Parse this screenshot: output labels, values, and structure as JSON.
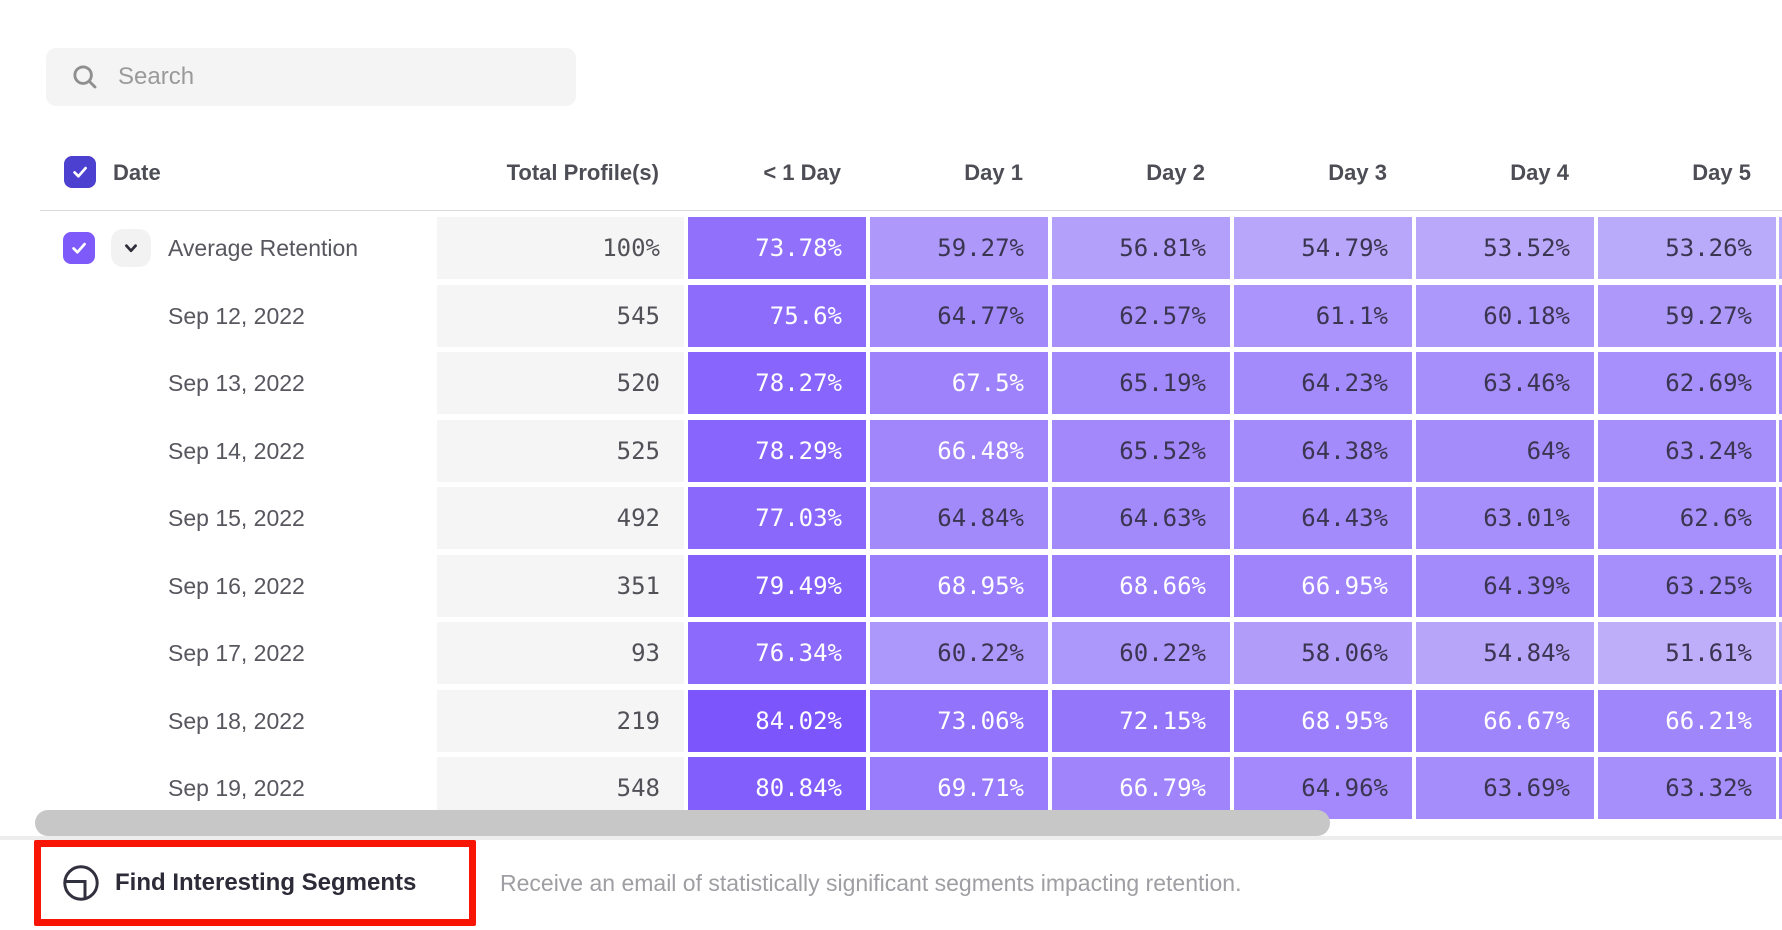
{
  "search": {
    "placeholder": "Search"
  },
  "table": {
    "date_header": "Date",
    "columns": [
      "Total Profile(s)",
      "< 1 Day",
      "Day 1",
      "Day 2",
      "Day 3",
      "Day 4",
      "Day 5"
    ],
    "rows": [
      {
        "label": "Average Retention",
        "is_average": true,
        "total": "100%",
        "values": [
          73.78,
          59.27,
          56.81,
          54.79,
          53.52,
          53.26
        ]
      },
      {
        "label": "Sep 12, 2022",
        "total": "545",
        "values": [
          75.6,
          64.77,
          62.57,
          61.1,
          60.18,
          59.27
        ]
      },
      {
        "label": "Sep 13, 2022",
        "total": "520",
        "values": [
          78.27,
          67.5,
          65.19,
          64.23,
          63.46,
          62.69
        ]
      },
      {
        "label": "Sep 14, 2022",
        "total": "525",
        "values": [
          78.29,
          66.48,
          65.52,
          64.38,
          64,
          63.24
        ]
      },
      {
        "label": "Sep 15, 2022",
        "total": "492",
        "values": [
          77.03,
          64.84,
          64.63,
          64.43,
          63.01,
          62.6
        ]
      },
      {
        "label": "Sep 16, 2022",
        "total": "351",
        "values": [
          79.49,
          68.95,
          68.66,
          66.95,
          64.39,
          63.25
        ]
      },
      {
        "label": "Sep 17, 2022",
        "total": "93",
        "values": [
          76.34,
          60.22,
          60.22,
          58.06,
          54.84,
          51.61
        ]
      },
      {
        "label": "Sep 18, 2022",
        "total": "219",
        "values": [
          84.02,
          73.06,
          72.15,
          68.95,
          66.67,
          66.21
        ]
      },
      {
        "label": "Sep 19, 2022",
        "total": "548",
        "values": [
          80.84,
          69.71,
          66.79,
          64.96,
          63.69,
          63.32
        ]
      }
    ],
    "heatmap": {
      "min": 51,
      "max": 85,
      "light_color": "#bfb0fa",
      "dark_color": "#7a52fc",
      "white_text_threshold": 66,
      "dark_text_color": "#3a3550",
      "white_text_color": "#ffffff"
    }
  },
  "footer": {
    "button_label": "Find Interesting Segments",
    "description": "Receive an email of statistically significant segments impacting retention.",
    "highlight_color": "#f91505"
  },
  "colors": {
    "header_checkbox": "#4c40d0",
    "row_checkbox": "#7e5afa",
    "total_cell_bg": "#f5f5f6",
    "scrollbar_thumb": "#c7c7c7"
  }
}
